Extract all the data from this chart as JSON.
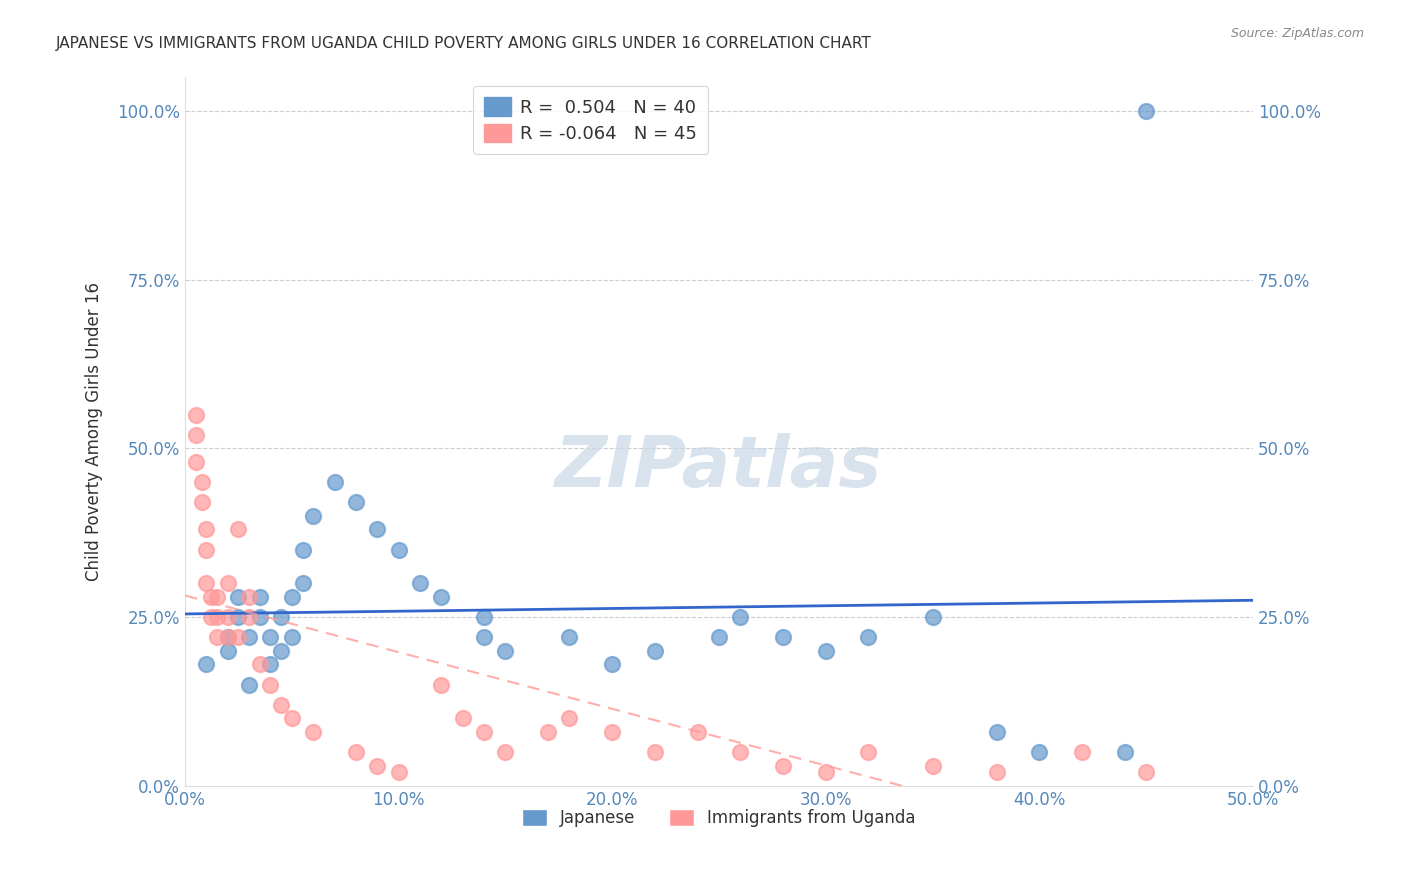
{
  "title": "JAPANESE VS IMMIGRANTS FROM UGANDA CHILD POVERTY AMONG GIRLS UNDER 16 CORRELATION CHART",
  "source": "Source: ZipAtlas.com",
  "ylabel": "Child Poverty Among Girls Under 16",
  "xlabel_ticks": [
    "0.0%",
    "10.0%",
    "20.0%",
    "30.0%",
    "40.0%",
    "50.0%"
  ],
  "ylabel_ticks": [
    "0.0%",
    "25.0%",
    "50.0%",
    "75.0%",
    "100.0%"
  ],
  "xlim": [
    0.0,
    0.5
  ],
  "ylim": [
    0.0,
    1.05
  ],
  "legend1_label": "R =  0.504   N = 40",
  "legend2_label": "R = -0.064   N = 45",
  "legend_japanese": "Japanese",
  "legend_uganda": "Immigrants from Uganda",
  "blue_color": "#6699CC",
  "pink_color": "#FF9999",
  "blue_line_color": "#3366CC",
  "pink_line_color": "#FF9999",
  "watermark": "ZIPatlas",
  "japanese_x": [
    0.01,
    0.02,
    0.02,
    0.025,
    0.025,
    0.03,
    0.03,
    0.035,
    0.035,
    0.04,
    0.04,
    0.045,
    0.045,
    0.05,
    0.05,
    0.055,
    0.055,
    0.06,
    0.07,
    0.08,
    0.09,
    0.1,
    0.11,
    0.12,
    0.14,
    0.14,
    0.15,
    0.18,
    0.2,
    0.22,
    0.25,
    0.26,
    0.28,
    0.3,
    0.32,
    0.35,
    0.38,
    0.4,
    0.44,
    0.45
  ],
  "japanese_y": [
    0.18,
    0.2,
    0.22,
    0.25,
    0.28,
    0.15,
    0.22,
    0.25,
    0.28,
    0.18,
    0.22,
    0.2,
    0.25,
    0.22,
    0.28,
    0.3,
    0.35,
    0.4,
    0.45,
    0.42,
    0.38,
    0.35,
    0.3,
    0.28,
    0.25,
    0.22,
    0.2,
    0.22,
    0.18,
    0.2,
    0.22,
    0.25,
    0.22,
    0.2,
    0.22,
    0.25,
    0.08,
    0.05,
    0.05,
    1.0
  ],
  "uganda_x": [
    0.005,
    0.005,
    0.005,
    0.008,
    0.008,
    0.01,
    0.01,
    0.01,
    0.012,
    0.012,
    0.015,
    0.015,
    0.015,
    0.02,
    0.02,
    0.02,
    0.025,
    0.025,
    0.03,
    0.03,
    0.035,
    0.04,
    0.045,
    0.05,
    0.06,
    0.08,
    0.09,
    0.1,
    0.12,
    0.13,
    0.14,
    0.15,
    0.17,
    0.18,
    0.2,
    0.22,
    0.24,
    0.26,
    0.28,
    0.3,
    0.32,
    0.35,
    0.38,
    0.42,
    0.45
  ],
  "uganda_y": [
    0.55,
    0.52,
    0.48,
    0.45,
    0.42,
    0.38,
    0.35,
    0.3,
    0.28,
    0.25,
    0.22,
    0.25,
    0.28,
    0.3,
    0.25,
    0.22,
    0.38,
    0.22,
    0.25,
    0.28,
    0.18,
    0.15,
    0.12,
    0.1,
    0.08,
    0.05,
    0.03,
    0.02,
    0.15,
    0.1,
    0.08,
    0.05,
    0.08,
    0.1,
    0.08,
    0.05,
    0.08,
    0.05,
    0.03,
    0.02,
    0.05,
    0.03,
    0.02,
    0.05,
    0.02
  ]
}
